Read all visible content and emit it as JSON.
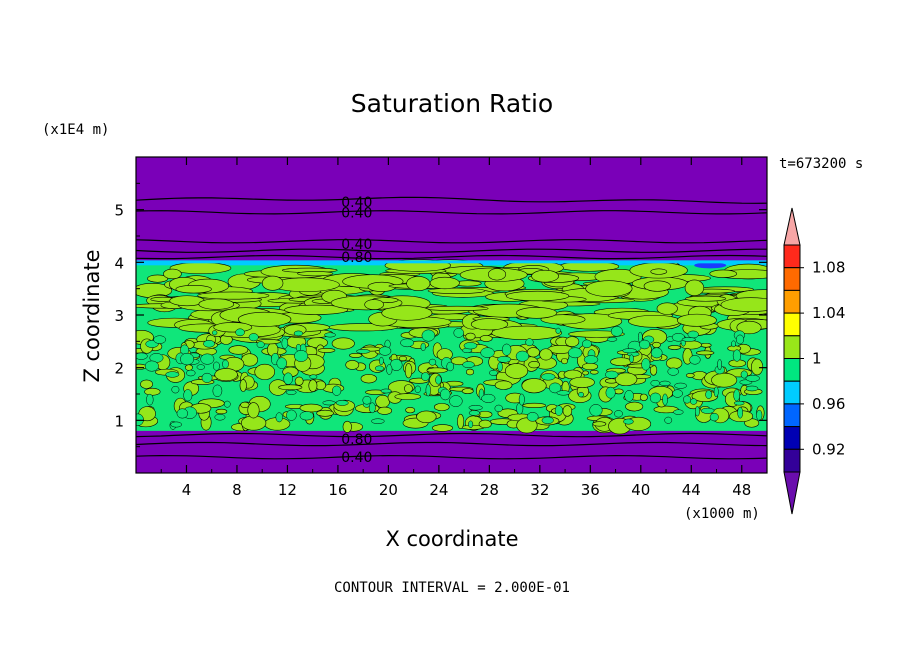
{
  "chart_data": {
    "type": "heatmap",
    "title": "Saturation Ratio",
    "xlabel": "X coordinate",
    "ylabel": "Z coordinate",
    "x_unit_label": "(x1000 m)",
    "y_unit_label": "(x1E4 m)",
    "time_label": "t=673200 s",
    "footer": "CONTOUR INTERVAL = 2.000E-01",
    "xlim": [
      0,
      50
    ],
    "ylim": [
      0,
      6
    ],
    "x_ticks": [
      "4",
      "8",
      "12",
      "16",
      "20",
      "24",
      "28",
      "32",
      "36",
      "40",
      "44",
      "48"
    ],
    "y_ticks": [
      "1",
      "2",
      "3",
      "4",
      "5"
    ],
    "contour_labels": [
      {
        "text": "0.40",
        "x": 17.5,
        "y": 5.15
      },
      {
        "text": "0.40",
        "x": 17.5,
        "y": 4.95
      },
      {
        "text": "0.40",
        "x": 17.5,
        "y": 4.35
      },
      {
        "text": "0.80",
        "x": 17.5,
        "y": 4.1
      },
      {
        "text": "0.80",
        "x": 17.5,
        "y": 0.65
      },
      {
        "text": "0.40",
        "x": 17.5,
        "y": 0.3
      }
    ],
    "colorbar": {
      "labels": [
        "1.08",
        "1.04",
        "1",
        "0.96",
        "0.92"
      ],
      "colors": [
        "#f7a6a6",
        "#ff2a1c",
        "#ff6a00",
        "#ff9e00",
        "#ffff00",
        "#99e619",
        "#00e680",
        "#00ccff",
        "#0066ff",
        "#0000b3",
        "#330099",
        "#6a0dad"
      ]
    },
    "fields": {
      "dry_color": "#7a00b8",
      "moist_color": "#10e67a",
      "supersat_color": "#96e61a",
      "low_color": "#1a3cff",
      "boundary_layer_top": 0.8,
      "cloud_top": 4.0
    }
  }
}
